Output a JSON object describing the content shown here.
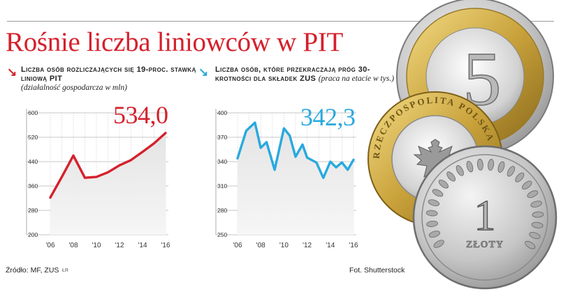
{
  "headline": "Rośnie liczba liniowców w PIT",
  "footer": {
    "source": "Źródło: MF, ZUS",
    "author": "ŁR",
    "photo": "Fot. Shutterstock"
  },
  "coins": {
    "five": {
      "digit": "5"
    },
    "two": {
      "rim_text": "RZECZPOSPOLITA POLSKA"
    },
    "one": {
      "digit": "1",
      "word": "ZŁOTY"
    }
  },
  "colors": {
    "red": "#d5202c",
    "blue": "#29a9de"
  },
  "chart_data": [
    {
      "type": "area",
      "title_caps": "Liczba osób rozliczających się 19-proc. stawką liniową PIT",
      "note": "(działalność gospodarcza w mln)",
      "highlight": "534,0",
      "x": [
        2006,
        2007,
        2008,
        2009,
        2010,
        2011,
        2012,
        2013,
        2014,
        2015,
        2016
      ],
      "x_ticks": [
        "'06",
        "'08",
        "'10",
        "'12",
        "'14",
        "'16"
      ],
      "values": [
        322,
        390,
        460,
        387,
        390,
        405,
        428,
        445,
        472,
        500,
        534
      ],
      "y_ticks": [
        "200",
        "280",
        "360",
        "440",
        "520",
        "600"
      ],
      "ylim": [
        200,
        600
      ],
      "grid": true
    },
    {
      "type": "area",
      "title_caps_a": "Liczba osób, które przekraczają próg 30-krotności dla składek",
      "title_caps_b": "ZUS",
      "note": "(praca na etacie w tys.)",
      "highlight": "342,3",
      "x": [
        2006,
        2006.75,
        2007.5,
        2008,
        2008.5,
        2009.2,
        2010,
        2010.5,
        2011,
        2011.6,
        2012,
        2012.8,
        2013.4,
        2014,
        2014.5,
        2015,
        2015.5,
        2016
      ],
      "x_ticks": [
        "'06",
        "'08",
        "'10",
        "'12",
        "'14",
        "'16"
      ],
      "values": [
        344,
        378,
        388,
        357,
        364,
        330,
        381,
        372,
        346,
        361,
        345,
        339,
        320,
        340,
        333,
        339,
        330,
        342.3
      ],
      "y_ticks": [
        "250",
        "280",
        "310",
        "340",
        "370",
        "400"
      ],
      "ylim": [
        250,
        400
      ],
      "grid": true
    }
  ]
}
